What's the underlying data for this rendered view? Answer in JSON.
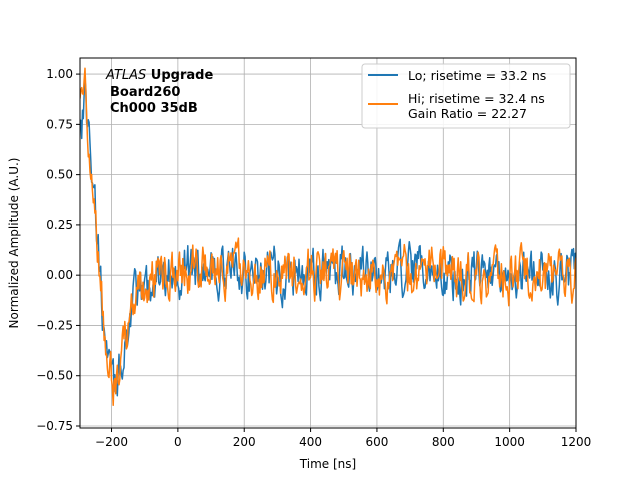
{
  "chart_data": {
    "type": "line",
    "title": "",
    "xlabel": "Time [ns]",
    "ylabel": "Normalized Amplitude (A.U.)",
    "xlim": [
      -295,
      1200
    ],
    "ylim": [
      -0.76,
      1.08
    ],
    "grid": true,
    "x_ticks": [
      -200,
      0,
      200,
      400,
      600,
      800,
      1000,
      1200
    ],
    "y_ticks": [
      -0.75,
      -0.5,
      -0.25,
      0.0,
      0.25,
      0.5,
      0.75,
      1.0
    ],
    "x_tick_labels": [
      "−200",
      "0",
      "200",
      "400",
      "600",
      "800",
      "1000",
      "1200"
    ],
    "y_tick_labels": [
      "−0.75",
      "−0.50",
      "−0.25",
      "0.00",
      "0.25",
      "0.50",
      "0.75",
      "1.00"
    ],
    "legend_position": "top-right",
    "series": [
      {
        "name": "Lo; risetime = 33.2 ns",
        "color": "#1f77b4",
        "x": [
          -290,
          -280,
          -270,
          -260,
          -250,
          -240,
          -230,
          -220,
          -210,
          -200,
          -190,
          -180,
          -170,
          -160,
          -150,
          -140,
          -120,
          -100,
          -80,
          -60,
          -40,
          -20,
          0,
          20,
          40,
          60,
          80,
          100,
          140,
          180,
          220,
          260,
          300,
          350,
          400,
          450,
          500,
          550,
          600,
          650,
          700,
          750,
          800,
          850,
          900,
          950,
          1000,
          1050,
          1100,
          1150,
          1200
        ],
        "y": [
          0.78,
          0.92,
          0.72,
          0.55,
          0.36,
          0.12,
          -0.12,
          -0.33,
          -0.46,
          -0.55,
          -0.58,
          -0.52,
          -0.42,
          -0.33,
          -0.25,
          -0.18,
          -0.12,
          -0.07,
          -0.03,
          -0.01,
          0.01,
          0.02,
          0.03,
          0.03,
          0.03,
          0.03,
          0.03,
          0.03,
          0.02,
          0.02,
          0.02,
          0.02,
          0.01,
          0.01,
          0.01,
          0.0,
          0.0,
          0.0,
          0.0,
          0.0,
          0.0,
          0.0,
          0.0,
          0.0,
          0.0,
          0.0,
          0.0,
          0.0,
          0.0,
          0.0,
          0.0
        ],
        "noise": 0.1
      },
      {
        "name": "Hi; risetime = 32.4 ns\n Gain Ratio = 22.27",
        "color": "#ff7f0e",
        "x": [
          -290,
          -280,
          -270,
          -260,
          -250,
          -240,
          -230,
          -220,
          -210,
          -200,
          -190,
          -180,
          -170,
          -160,
          -150,
          -140,
          -120,
          -100,
          -80,
          -60,
          -40,
          -20,
          0,
          20,
          40,
          60,
          80,
          100,
          140,
          180,
          220,
          260,
          300,
          350,
          400,
          450,
          500,
          550,
          600,
          650,
          700,
          750,
          800,
          850,
          900,
          950,
          1000,
          1050,
          1100,
          1150,
          1200
        ],
        "y": [
          0.8,
          0.93,
          0.73,
          0.56,
          0.37,
          0.13,
          -0.11,
          -0.32,
          -0.45,
          -0.54,
          -0.57,
          -0.51,
          -0.41,
          -0.32,
          -0.24,
          -0.17,
          -0.11,
          -0.06,
          -0.02,
          0.0,
          0.02,
          0.03,
          0.04,
          0.04,
          0.04,
          0.03,
          0.03,
          0.03,
          0.02,
          0.02,
          0.02,
          0.02,
          0.01,
          0.01,
          0.01,
          0.0,
          0.0,
          0.0,
          0.0,
          0.0,
          0.0,
          0.0,
          0.0,
          0.0,
          0.0,
          0.0,
          0.0,
          0.0,
          0.0,
          0.0,
          0.0
        ],
        "noise": 0.1
      }
    ],
    "annotation": {
      "atlas": "ATLAS",
      "upgrade": " Upgrade",
      "board": "Board260",
      "channel": "Ch000 35dB"
    }
  }
}
